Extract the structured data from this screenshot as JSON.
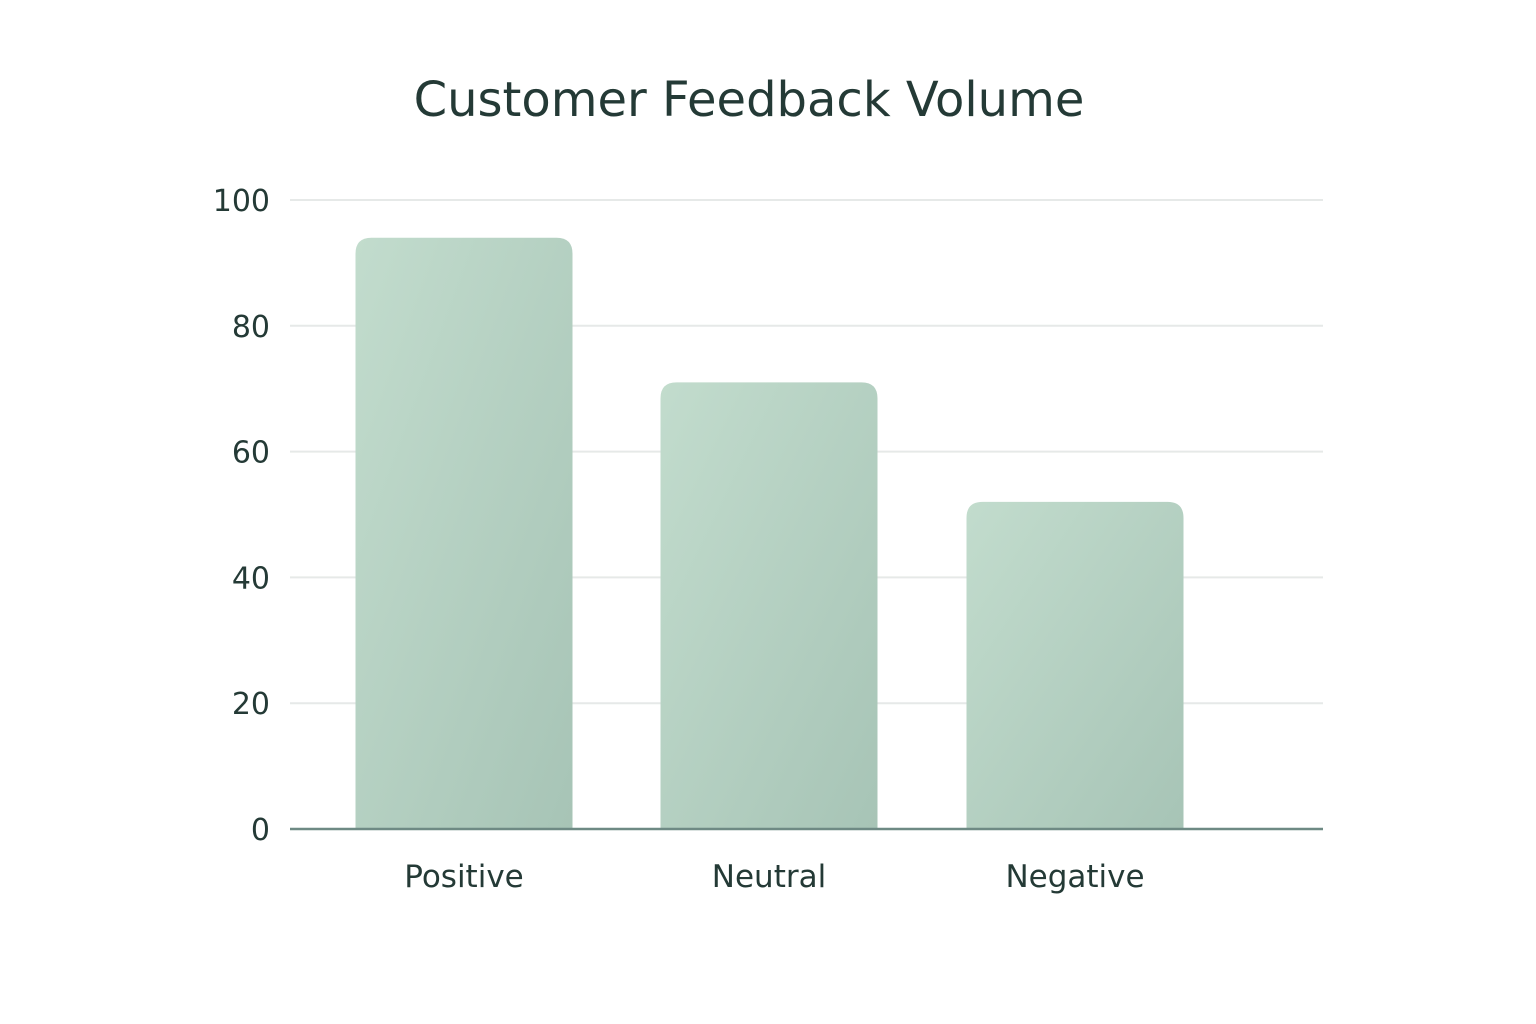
{
  "chart_data": {
    "type": "bar",
    "title": "Customer Feedback Volume",
    "categories": [
      "Positive",
      "Neutral",
      "Negative"
    ],
    "values": [
      94,
      71,
      52
    ],
    "xlabel": "",
    "ylabel": "",
    "ylim": [
      0,
      100
    ],
    "yticks": [
      "0",
      "20",
      "40",
      "60",
      "80",
      "100"
    ],
    "grid": true,
    "legend": "none",
    "colors": {
      "bar_light": "#c2dccd",
      "bar_dark": "#a7c4b6",
      "text": "#243a36",
      "grid": "#e6e9e8",
      "axis": "#6e8a84"
    }
  }
}
